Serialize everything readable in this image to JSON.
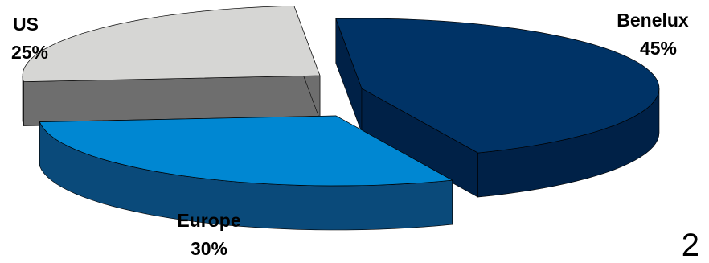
{
  "chart_data": {
    "type": "pie",
    "style": "3d-exploded",
    "slices": [
      {
        "label": "Benelux",
        "value": 45,
        "value_label": "45%",
        "color_top": "#003366",
        "color_side": "#002147"
      },
      {
        "label": "Europe",
        "value": 30,
        "value_label": "30%",
        "color_top": "#0087D2",
        "color_side": "#0A4A7A"
      },
      {
        "label": "US",
        "value": 25,
        "value_label": "25%",
        "color_top": "#D6D6D4",
        "color_side": "#6E6E6E"
      }
    ]
  },
  "page_number": "2"
}
